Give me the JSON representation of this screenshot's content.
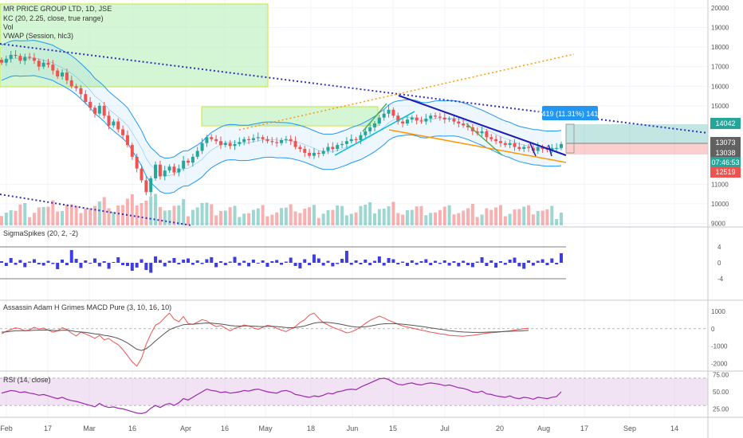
{
  "legend": {
    "symbol": "MR PRICE GROUP LTD, 1D, JSE",
    "kc": "KC (20, 2.25, close, true range)",
    "vol": "Vol",
    "vwap": "VWAP (Session, hlc3)"
  },
  "panes": {
    "sigma": "SigmaSpikes (20, 2, -2)",
    "macd": "Assassin Adam H Grimes MACD Pure (3, 10, 16, 10)",
    "rsi": "RSI (14, close)"
  },
  "price_axis": {
    "ticks": [
      "20000",
      "19000",
      "18000",
      "17000",
      "16000",
      "15000",
      "11000",
      "10000",
      "9000"
    ],
    "labels": {
      "a": "14042",
      "b": "13073",
      "c": "13038",
      "timer": "07:46:53",
      "d": "12519"
    }
  },
  "measure_label": "1419 (11.31%) 1419",
  "sigma_axis": [
    "4",
    "0",
    "-4"
  ],
  "macd_axis": [
    "1000",
    "0",
    "-1000",
    "-2000"
  ],
  "rsi_axis": [
    "75.00",
    "50.00",
    "25.00"
  ],
  "time_axis": [
    "Feb",
    "17",
    "Mar",
    "16",
    "Apr",
    "16",
    "May",
    "18",
    "Jun",
    "15",
    "Jul",
    "20",
    "Aug",
    "17",
    "Sep",
    "14"
  ],
  "colors": {
    "up": "#26a69a",
    "down": "#ef5350",
    "kc": "#2196f3",
    "sigma": "#3d3de0",
    "rsi": "#9c27b0",
    "macd_red": "#ef5350"
  },
  "chart_data": [
    {
      "type": "candlestick",
      "title": "MR PRICE GROUP LTD, 1D, JSE",
      "ylim": [
        8900,
        20400
      ],
      "x_ticks": [
        "Feb",
        "17",
        "Mar",
        "16",
        "Apr",
        "16",
        "May",
        "18",
        "Jun",
        "15",
        "Jul",
        "20",
        "Aug",
        "17",
        "Sep",
        "14"
      ],
      "close_series": [
        17200,
        17400,
        17600,
        17550,
        17300,
        17500,
        17450,
        17300,
        17000,
        17200,
        17100,
        16800,
        16500,
        16700,
        16300,
        16000,
        15900,
        15600,
        15200,
        14900,
        14600,
        15000,
        14500,
        14000,
        14200,
        13800,
        13500,
        13000,
        12400,
        11800,
        11200,
        10600,
        11300,
        12000,
        11400,
        11700,
        11900,
        11600,
        11800,
        12200,
        12100,
        12400,
        12700,
        13100,
        13400,
        13300,
        13200,
        13000,
        13100,
        12950,
        13050,
        13150,
        13300,
        13250,
        13350,
        13400,
        13300,
        13200,
        13150,
        13100,
        13250,
        13300,
        13200,
        12900,
        12800,
        12600,
        12450,
        12600,
        12550,
        12700,
        12900,
        12800,
        13000,
        13050,
        13200,
        13300,
        13250,
        13500,
        13700,
        13900,
        14100,
        14400,
        14600,
        14800,
        14500,
        14200,
        14100,
        14300,
        14400,
        14250,
        14200,
        14350,
        14500,
        14450,
        14400,
        14300,
        14350,
        14200,
        14100,
        14000,
        13900,
        13700,
        13600,
        13700,
        13400,
        13300,
        13200,
        13100,
        13000,
        13100,
        12900,
        12800,
        12900,
        12850,
        12700,
        12900,
        12800,
        12750,
        12850,
        12850,
        13050
      ]
    },
    {
      "type": "bar",
      "title": "SigmaSpikes (20, 2, -2)",
      "ylim": [
        -4,
        4
      ],
      "values": [
        0.4,
        -0.8,
        1.2,
        -0.5,
        0.7,
        -1.1,
        0.3,
        0.9,
        -0.4,
        -0.7,
        0.5,
        -0.3,
        -1.6,
        0.8,
        -0.6,
        3.2,
        1.0,
        -1.3,
        0.6,
        -0.2,
        1.1,
        -0.9,
        0.4,
        -1.5,
        0.2,
        1.4,
        -0.6,
        -0.8,
        -2.0,
        -1.2,
        0.9,
        -1.8,
        -2.5,
        1.6,
        0.7,
        -0.9,
        0.5,
        1.2,
        -0.4,
        0.8,
        1.1,
        -0.5,
        0.6,
        -0.3,
        0.9,
        1.4,
        -1.1,
        0.4,
        -0.6,
        0.3,
        1.5,
        -0.7,
        0.5,
        -0.9,
        0.8,
        -0.2,
        0.6,
        -1.0,
        0.4,
        0.7,
        -0.5,
        0.3,
        1.3,
        -0.8,
        -1.4,
        0.9,
        -0.6,
        2.1,
        1.1,
        -0.7,
        0.5,
        -0.9,
        -0.3,
        1.0,
        3.0,
        -0.5,
        0.6,
        -0.4,
        0.8,
        -0.6,
        0.5,
        1.6,
        -0.7,
        1.2,
        0.9,
        -0.4,
        0.3,
        -0.8,
        0.6,
        -0.5,
        0.4,
        0.9,
        -0.6,
        0.5,
        -0.3,
        0.6,
        -0.7,
        0.4,
        -0.9,
        0.5,
        -0.6,
        -1.1,
        0.3,
        1.4,
        -0.8,
        0.6,
        -1.2,
        0.4,
        -0.5,
        0.8,
        1.3,
        -0.9,
        -1.5,
        0.6,
        -0.7,
        0.5,
        0.9,
        -0.6,
        1.1,
        -0.4,
        2.4
      ]
    },
    {
      "type": "line",
      "title": "Assassin Adam H Grimes MACD Pure (3, 10, 16, 10)",
      "ylim": [
        -2300,
        1500
      ],
      "series": [
        {
          "values": [
            -300,
            -150,
            -50,
            50,
            0,
            -120,
            -60,
            80,
            -20,
            40,
            -80,
            -200,
            -120,
            60,
            -40,
            -260,
            -420,
            -200,
            -300,
            -420,
            -550,
            -380,
            -640,
            -560,
            -760,
            -920,
            -1200,
            -1550,
            -1900,
            -2150,
            -1700,
            -900,
            -300,
            200,
            350,
            650,
            900,
            550,
            400,
            700,
            300,
            250,
            380,
            520,
            450,
            260,
            120,
            180,
            40,
            -120,
            30,
            90,
            220,
            160,
            50,
            -40,
            80,
            200,
            140,
            20,
            -80,
            -160,
            -20,
            120,
            360,
            520,
            780,
            900,
            600,
            350,
            220,
            80,
            -20,
            -120,
            -240,
            -180,
            -60,
            100,
            300,
            480,
            600,
            720,
            620,
            480,
            380,
            260,
            160,
            100,
            40,
            -20,
            -80,
            -140,
            -200,
            -240,
            -300,
            -320,
            -380,
            -400,
            -420,
            -430,
            -400,
            -380,
            -340,
            -300,
            -260,
            -230,
            -210,
            -180,
            -150,
            -120,
            -80,
            -40,
            0,
            30
          ]
        },
        {
          "values": [
            -200,
            -180,
            -150,
            -120,
            -110,
            -115,
            -105,
            -90,
            -85,
            -75,
            -80,
            -100,
            -110,
            -90,
            -85,
            -110,
            -170,
            -190,
            -210,
            -250,
            -300,
            -320,
            -380,
            -420,
            -480,
            -560,
            -680,
            -820,
            -1000,
            -1180,
            -1250,
            -1150,
            -950,
            -700,
            -480,
            -260,
            -60,
            60,
            140,
            230,
            250,
            260,
            280,
            310,
            330,
            320,
            290,
            270,
            230,
            180,
            160,
            150,
            160,
            160,
            150,
            130,
            120,
            130,
            130,
            120,
            100,
            70,
            60,
            70,
            110,
            160,
            240,
            320,
            360,
            370,
            360,
            330,
            290,
            240,
            180,
            130,
            100,
            90,
            110,
            150,
            200,
            250,
            280,
            290,
            290,
            280,
            260,
            230,
            200,
            170,
            130,
            90,
            50,
            10,
            -30,
            -70,
            -110,
            -140,
            -170,
            -190,
            -200,
            -210,
            -210,
            -210,
            -200,
            -190,
            -180,
            -170,
            -160,
            -150,
            -140,
            -130,
            -115,
            -100
          ]
        }
      ]
    },
    {
      "type": "line",
      "title": "RSI (14, close)",
      "ylim": [
        15,
        78
      ],
      "series": [
        {
          "values": [
            48,
            50,
            52,
            51,
            49,
            50,
            48,
            47,
            45,
            46,
            44,
            42,
            40,
            42,
            39,
            37,
            36,
            34,
            32,
            30,
            28,
            33,
            29,
            27,
            28,
            26,
            25,
            23,
            21,
            19,
            18,
            20,
            26,
            30,
            27,
            31,
            33,
            30,
            34,
            40,
            38,
            42,
            46,
            50,
            54,
            52,
            51,
            49,
            50,
            48,
            49,
            50,
            52,
            51,
            53,
            54,
            52,
            50,
            49,
            48,
            51,
            52,
            50,
            46,
            45,
            43,
            42,
            44,
            43,
            45,
            48,
            47,
            50,
            51,
            53,
            54,
            53,
            57,
            60,
            63,
            66,
            69,
            70,
            68,
            64,
            61,
            60,
            62,
            63,
            61,
            60,
            62,
            63,
            62,
            61,
            59,
            60,
            58,
            56,
            55,
            53,
            50,
            49,
            51,
            47,
            46,
            44,
            43,
            42,
            44,
            41,
            40,
            42,
            41,
            39,
            42,
            41,
            40,
            42,
            43,
            50
          ]
        }
      ]
    }
  ]
}
